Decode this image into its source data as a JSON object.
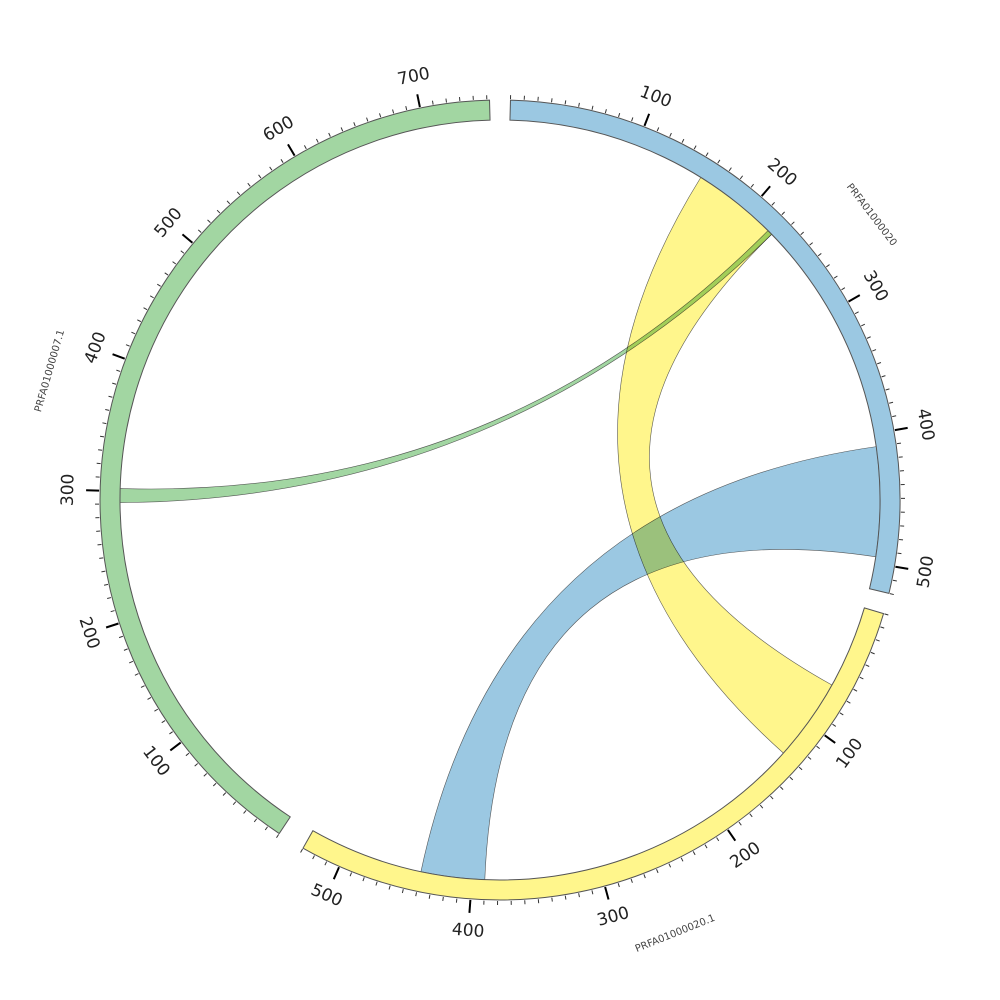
{
  "diagram": {
    "type": "chord",
    "colors": {
      "blue": "#9BC8E2",
      "yellow": "#FFF68C",
      "green": "#A2D6A2",
      "outline": "#555555"
    },
    "segments": [
      {
        "id": "blue",
        "label": "PRFA01000020",
        "color": "#9BC8E2",
        "start_deg": 1.5,
        "end_deg": 103.5,
        "length": 520,
        "major_ticks": [
          {
            "value": 100,
            "label": "100"
          },
          {
            "value": 200,
            "label": "200"
          },
          {
            "value": 300,
            "label": "300"
          },
          {
            "value": 400,
            "label": "400"
          },
          {
            "value": 500,
            "label": "500"
          }
        ]
      },
      {
        "id": "yellow",
        "label": "PRFA01000020.1",
        "color": "#FFF68C",
        "start_deg": 106.5,
        "end_deg": 209.5,
        "length": 530,
        "major_ticks": [
          {
            "value": 100,
            "label": "100"
          },
          {
            "value": 200,
            "label": "200"
          },
          {
            "value": 300,
            "label": "300"
          },
          {
            "value": 400,
            "label": "400"
          },
          {
            "value": 500,
            "label": "500"
          }
        ]
      },
      {
        "id": "green",
        "label": "PRFA01000007.1",
        "color": "#A2D6A2",
        "start_deg": 213.5,
        "end_deg": 358.5,
        "length": 752,
        "major_ticks": [
          {
            "value": 100,
            "label": "100"
          },
          {
            "value": 200,
            "label": "200"
          },
          {
            "value": 300,
            "label": "300"
          },
          {
            "value": 400,
            "label": "400"
          },
          {
            "value": 500,
            "label": "500"
          },
          {
            "value": 600,
            "label": "600"
          },
          {
            "value": 700,
            "label": "700"
          }
        ]
      }
    ],
    "links": [
      {
        "id": "blue-to-yellow",
        "color": "#9BC8E2",
        "from": {
          "segment": "blue",
          "start": 410,
          "end": 495
        },
        "to": {
          "segment": "yellow",
          "start": 390,
          "end": 440
        }
      },
      {
        "id": "yellow-to-blue",
        "color": "#FFF68C",
        "from": {
          "segment": "yellow",
          "start": 65,
          "end": 130
        },
        "to": {
          "segment": "blue",
          "start": 155,
          "end": 225
        }
      },
      {
        "id": "green-to-blue",
        "color": "#A2D6A2",
        "from": {
          "segment": "green",
          "start": 291,
          "end": 302
        },
        "to": {
          "segment": "blue",
          "start": 221,
          "end": 225
        }
      }
    ]
  }
}
